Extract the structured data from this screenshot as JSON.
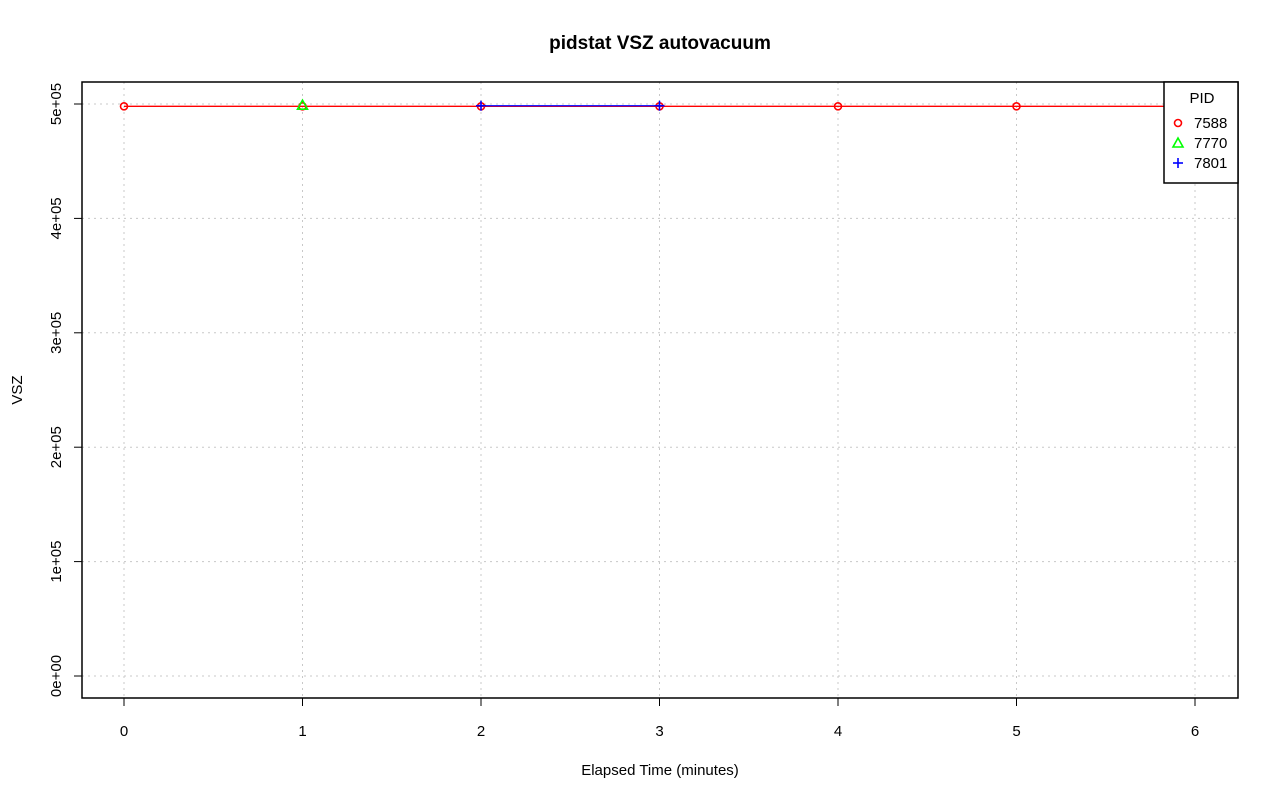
{
  "chart_data": {
    "type": "line",
    "title": "pidstat VSZ autovacuum",
    "xlabel": "Elapsed Time (minutes)",
    "ylabel": "VSZ",
    "xlim": [
      0,
      6
    ],
    "ylim": [
      0,
      500000
    ],
    "x_ticks": [
      0,
      1,
      2,
      3,
      4,
      5,
      6
    ],
    "x_tick_labels": [
      "0",
      "1",
      "2",
      "3",
      "4",
      "5",
      "6"
    ],
    "y_ticks": [
      0,
      100000,
      200000,
      300000,
      400000,
      500000
    ],
    "y_tick_labels": [
      "0e+00",
      "1e+05",
      "2e+05",
      "3e+05",
      "4e+05",
      "5e+05"
    ],
    "grid": true,
    "legend": {
      "title": "PID",
      "position": "top-right"
    },
    "series": [
      {
        "name": "7588",
        "color": "#ff0000",
        "marker": "circle",
        "points": [
          [
            0,
            498000
          ],
          [
            1,
            498000
          ],
          [
            2,
            498000
          ],
          [
            3,
            498000
          ],
          [
            4,
            498000
          ],
          [
            5,
            498000
          ],
          [
            6,
            498000
          ]
        ]
      },
      {
        "name": "7770",
        "color": "#00ff00",
        "marker": "triangle",
        "points": [
          [
            1,
            499000
          ]
        ]
      },
      {
        "name": "7801",
        "color": "#0000ff",
        "marker": "plus",
        "points": [
          [
            2,
            498500
          ],
          [
            3,
            498500
          ]
        ]
      }
    ]
  }
}
